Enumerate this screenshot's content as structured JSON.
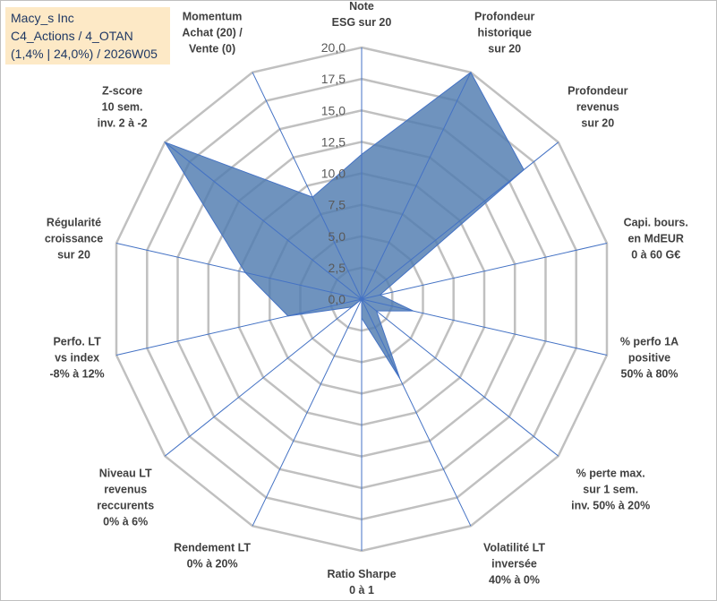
{
  "title_box": {
    "line1": "Macy_s Inc",
    "line2": "C4_Actions / 4_OTAN",
    "line3": "(1,4% | 24,0%) / 2026W05"
  },
  "colors": {
    "grid": "#c0c0c0",
    "spoke": "#4472c4",
    "fill": "#4f7bb0",
    "title_bg": "#fde9c6"
  },
  "chart_data": {
    "type": "radar",
    "title": "Macy_s Inc",
    "rmax": 20,
    "ticks": [
      "0,0",
      "2,5",
      "5,0",
      "7,5",
      "10,0",
      "12,5",
      "15,0",
      "17,5",
      "20,0"
    ],
    "axes": [
      {
        "label": [
          "Note",
          "ESG sur 20"
        ],
        "value": 11.5
      },
      {
        "label": [
          "Profondeur",
          "historique",
          "sur 20"
        ],
        "value": 20.0
      },
      {
        "label": [
          "Profondeur",
          "revenus",
          "sur 20"
        ],
        "value": 16.5
      },
      {
        "label": [
          "Capi. bours.",
          "en MdEUR",
          "0 à 60 G€"
        ],
        "value": 1.5
      },
      {
        "label": [
          "% perfo 1A",
          "positive",
          "50% à 80%"
        ],
        "value": 4.2
      },
      {
        "label": [
          "% perte max.",
          "sur 1 sem.",
          "inv. 50% à 20%"
        ],
        "value": 1.5
      },
      {
        "label": [
          "Volatilité LT",
          "inversée",
          "40% à 0%"
        ],
        "value": 7.0
      },
      {
        "label": [
          "Ratio Sharpe",
          "0 à 1"
        ],
        "value": 1.5
      },
      {
        "label": [
          "Rendement LT",
          "0% à 20%"
        ],
        "value": 0.0
      },
      {
        "label": [
          "Niveau LT",
          "revenus",
          "reccurents",
          "0% à 6%"
        ],
        "value": 1.0
      },
      {
        "label": [
          "Perfo. LT",
          "vs index",
          "-8% à 12%"
        ],
        "value": 6.0
      },
      {
        "label": [
          "Régularité",
          "croissance",
          "sur 20"
        ],
        "value": 9.5
      },
      {
        "label": [
          "Z-score",
          "10 sem.",
          "inv. 2 à -2"
        ],
        "value": 20.0
      },
      {
        "label": [
          "Momentum",
          "Achat (20) /",
          "Vente (0)"
        ],
        "value": 9.0
      }
    ]
  }
}
